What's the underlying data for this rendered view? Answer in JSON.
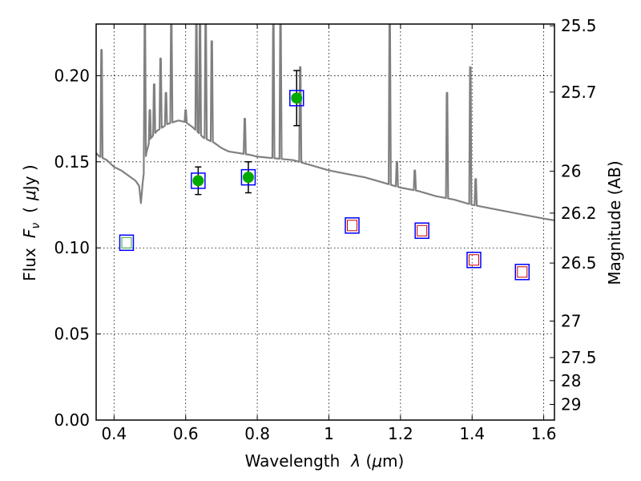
{
  "chart_data": {
    "type": "scatter",
    "xlabel_prefix": "Wavelength",
    "xlabel_symbol": "λ",
    "xlabel_unit_open": " (",
    "xlabel_unit_mu": "μ",
    "xlabel_unit_rest": "m)",
    "ylabel_prefix": "Flux",
    "ylabel_symbol": "F",
    "ylabel_sub": "ν",
    "ylabel_unit_open": "(",
    "ylabel_unit_mu": "μ",
    "ylabel_unit_rest": "Jy )",
    "y2label": "Magnitude (AB)",
    "xlim": [
      0.35,
      1.63
    ],
    "ylim": [
      0.0,
      0.23
    ],
    "x_ticks": [
      0.4,
      0.6,
      0.8,
      1.0,
      1.2,
      1.4,
      1.6
    ],
    "x_tick_labels": [
      "0.4",
      "0.6",
      "0.8",
      "1",
      "1.2",
      "1.4",
      "1.6"
    ],
    "y_ticks": [
      0.0,
      0.05,
      0.1,
      0.15,
      0.2
    ],
    "y_tick_labels": [
      "0.00",
      "0.05",
      "0.10",
      "0.15",
      "0.20"
    ],
    "y2_ticks": [
      {
        "flux": 0.229,
        "label": "25.5"
      },
      {
        "flux": 0.1905,
        "label": "25.7"
      },
      {
        "flux": 0.1445,
        "label": "26"
      },
      {
        "flux": 0.1202,
        "label": "26.2"
      },
      {
        "flux": 0.0912,
        "label": "26.5"
      },
      {
        "flux": 0.0575,
        "label": "27"
      },
      {
        "flux": 0.0363,
        "label": "27.5"
      },
      {
        "flux": 0.0229,
        "label": "28"
      },
      {
        "flux": 0.0091,
        "label": "29"
      }
    ],
    "grid": true,
    "colors": {
      "spectrum": "#808080",
      "observed_marker": "#00aa00",
      "model_box": "#0000ff",
      "upper_box_red": "#cc0000",
      "upper_box_green": "#33aa33",
      "errorbar": "#000000"
    },
    "spectrum_continuum": [
      [
        0.35,
        0.155
      ],
      [
        0.36,
        0.153
      ],
      [
        0.37,
        0.152
      ],
      [
        0.38,
        0.151
      ],
      [
        0.39,
        0.149
      ],
      [
        0.4,
        0.147
      ],
      [
        0.42,
        0.145
      ],
      [
        0.44,
        0.142
      ],
      [
        0.46,
        0.139
      ],
      [
        0.47,
        0.136
      ],
      [
        0.475,
        0.126
      ],
      [
        0.48,
        0.138
      ],
      [
        0.49,
        0.155
      ],
      [
        0.5,
        0.163
      ],
      [
        0.52,
        0.168
      ],
      [
        0.55,
        0.172
      ],
      [
        0.58,
        0.174
      ],
      [
        0.6,
        0.173
      ],
      [
        0.62,
        0.17
      ],
      [
        0.65,
        0.164
      ],
      [
        0.68,
        0.161
      ],
      [
        0.7,
        0.158
      ],
      [
        0.72,
        0.156
      ],
      [
        0.75,
        0.155
      ],
      [
        0.78,
        0.154
      ],
      [
        0.8,
        0.153
      ],
      [
        0.85,
        0.152
      ],
      [
        0.9,
        0.151
      ],
      [
        0.95,
        0.148
      ],
      [
        1.0,
        0.145
      ],
      [
        1.05,
        0.143
      ],
      [
        1.1,
        0.141
      ],
      [
        1.15,
        0.138
      ],
      [
        1.2,
        0.135
      ],
      [
        1.25,
        0.133
      ],
      [
        1.3,
        0.13
      ],
      [
        1.35,
        0.128
      ],
      [
        1.4,
        0.125
      ],
      [
        1.45,
        0.123
      ],
      [
        1.5,
        0.121
      ],
      [
        1.55,
        0.119
      ],
      [
        1.6,
        0.117
      ],
      [
        1.63,
        0.116
      ]
    ],
    "spectrum_lines": [
      {
        "x": 0.365,
        "peak": 0.215
      },
      {
        "x": 0.486,
        "peak": 0.23
      },
      {
        "x": 0.5,
        "peak": 0.18
      },
      {
        "x": 0.512,
        "peak": 0.195
      },
      {
        "x": 0.53,
        "peak": 0.21
      },
      {
        "x": 0.545,
        "peak": 0.19
      },
      {
        "x": 0.56,
        "peak": 0.23
      },
      {
        "x": 0.6,
        "peak": 0.18
      },
      {
        "x": 0.63,
        "peak": 0.23
      },
      {
        "x": 0.64,
        "peak": 0.23
      },
      {
        "x": 0.656,
        "peak": 0.23
      },
      {
        "x": 0.673,
        "peak": 0.22
      },
      {
        "x": 0.765,
        "peak": 0.175
      },
      {
        "x": 0.845,
        "peak": 0.23
      },
      {
        "x": 0.865,
        "peak": 0.23
      },
      {
        "x": 0.92,
        "peak": 0.205
      },
      {
        "x": 1.17,
        "peak": 0.23
      },
      {
        "x": 1.19,
        "peak": 0.15
      },
      {
        "x": 1.24,
        "peak": 0.145
      },
      {
        "x": 1.33,
        "peak": 0.19
      },
      {
        "x": 1.395,
        "peak": 0.205
      },
      {
        "x": 1.41,
        "peak": 0.14
      }
    ],
    "observed_points": [
      {
        "x": 0.635,
        "y": 0.139,
        "err": 0.008
      },
      {
        "x": 0.775,
        "y": 0.141,
        "err": 0.009
      },
      {
        "x": 0.91,
        "y": 0.187,
        "err": 0.016
      }
    ],
    "model_boxes": [
      {
        "x": 0.435,
        "y": 0.103,
        "inner": "green"
      },
      {
        "x": 0.635,
        "y": 0.139,
        "inner": "none"
      },
      {
        "x": 0.775,
        "y": 0.141,
        "inner": "none"
      },
      {
        "x": 0.91,
        "y": 0.187,
        "inner": "none"
      },
      {
        "x": 1.065,
        "y": 0.113,
        "inner": "red"
      },
      {
        "x": 1.26,
        "y": 0.11,
        "inner": "red"
      },
      {
        "x": 1.405,
        "y": 0.093,
        "inner": "red"
      },
      {
        "x": 1.54,
        "y": 0.086,
        "inner": "red"
      }
    ]
  }
}
